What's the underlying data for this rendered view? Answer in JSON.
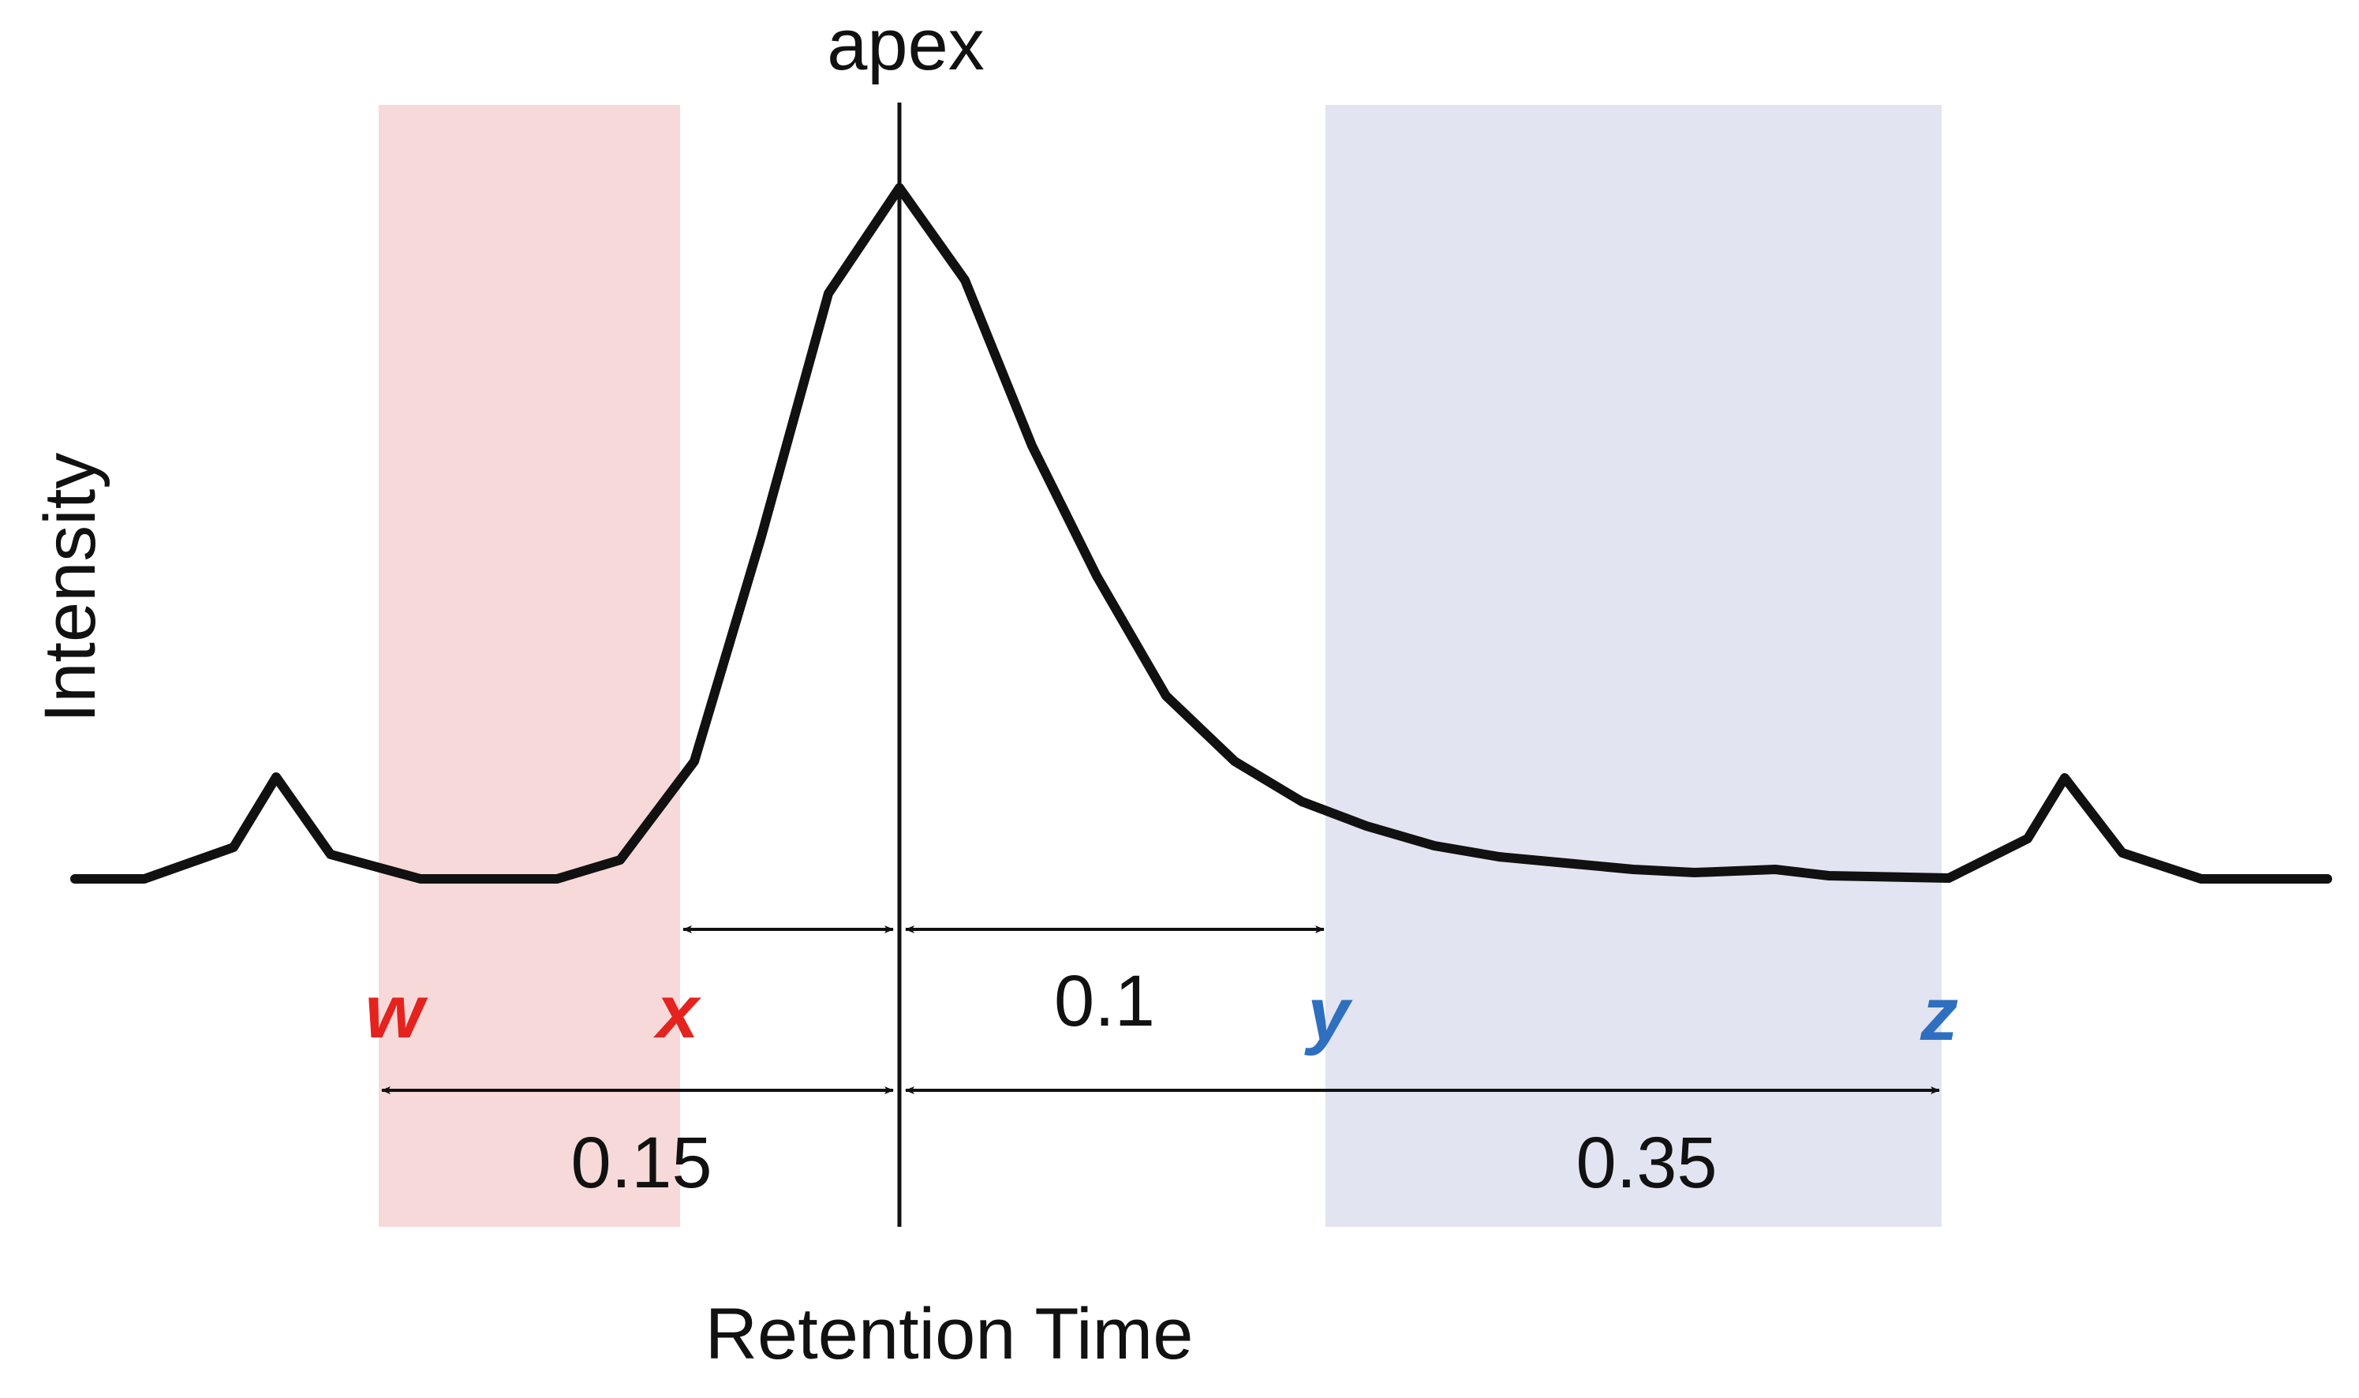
{
  "labels": {
    "apex": "apex",
    "y_axis": "Intensity",
    "x_axis": "Retention Time"
  },
  "points": {
    "w": "w",
    "x": "x",
    "y": "y",
    "z": "z"
  },
  "intervals": {
    "apex_to_y": "0.1",
    "w_to_apex": "0.15",
    "apex_to_z": "0.35"
  },
  "colors": {
    "left_band": "#f7d9d9",
    "right_band": "#e2e4f1",
    "left_letters": "#e4231f",
    "right_letters": "#2f6fbf",
    "trace": "#111111"
  }
}
